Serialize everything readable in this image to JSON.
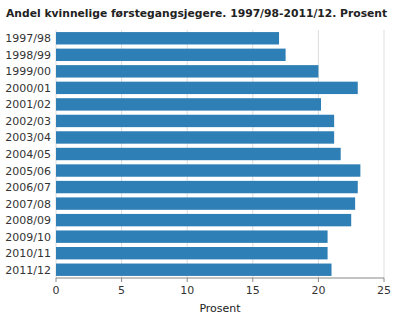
{
  "chart_data": {
    "type": "bar",
    "orientation": "horizontal",
    "title": "Andel kvinnelige førstegangsjegere. 1997/98-2011/12. Prosent",
    "categories": [
      "1997/98",
      "1998/99",
      "1999/00",
      "2000/01",
      "2001/02",
      "2002/03",
      "2003/04",
      "2004/05",
      "2005/06",
      "2006/07",
      "2007/08",
      "2008/09",
      "2009/10",
      "2010/11",
      "2011/12"
    ],
    "values": [
      17.0,
      17.5,
      20.0,
      23.0,
      20.2,
      21.2,
      21.2,
      21.7,
      23.2,
      23.0,
      22.8,
      22.5,
      20.7,
      20.7,
      21.0
    ],
    "color": "#2e7fb5",
    "xlabel": "Prosent",
    "xlim": [
      0,
      25
    ],
    "xticks": [
      0,
      5,
      10,
      15,
      20,
      25
    ],
    "grid": true
  }
}
